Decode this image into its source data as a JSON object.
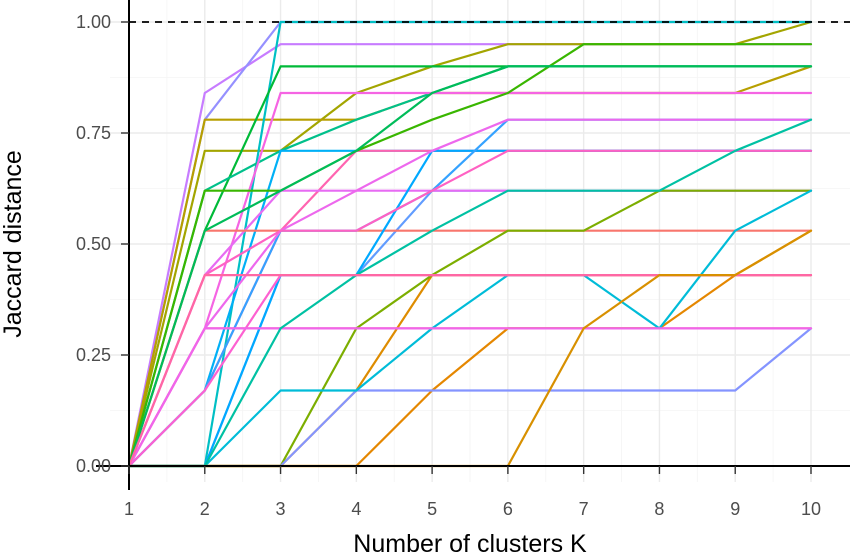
{
  "chart_data": {
    "type": "line",
    "title": "",
    "xlabel": "Number of clusters K",
    "ylabel": "Jaccard distance",
    "xlim": [
      1,
      10
    ],
    "ylim": [
      0,
      1
    ],
    "x_ticks": [
      1,
      2,
      3,
      4,
      5,
      6,
      7,
      8,
      9,
      10
    ],
    "y_ticks": [
      0,
      0.25,
      0.5,
      0.75,
      1
    ],
    "y_tick_labels": [
      "0.00",
      "0.25",
      "0.50",
      "0.75",
      "1.00"
    ],
    "grid": true,
    "legend": "none",
    "reference_line": {
      "y": 1.0,
      "style": "dashed",
      "color": "#000000"
    },
    "x": [
      1,
      2,
      3,
      4,
      5,
      6,
      7,
      8,
      9,
      10
    ],
    "series": [
      {
        "color": "#C77CFF",
        "values": [
          0,
          0.84,
          0.95,
          0.95,
          0.95,
          0.95,
          0.95,
          0.95,
          0.95,
          0.95
        ]
      },
      {
        "color": "#9590FF",
        "values": [
          0,
          0.78,
          1.0,
          1.0,
          1.0,
          1.0,
          1.0,
          1.0,
          1.0,
          1.0
        ]
      },
      {
        "color": "#A3A500",
        "values": [
          0,
          0.71,
          0.71,
          0.84,
          0.9,
          0.95,
          0.95,
          0.95,
          0.95,
          1.0
        ]
      },
      {
        "color": "#B79F00",
        "values": [
          0,
          0.78,
          0.78,
          0.78,
          0.84,
          0.84,
          0.84,
          0.84,
          0.84,
          0.9
        ]
      },
      {
        "color": "#00BFC4",
        "values": [
          0,
          0.0,
          1.0,
          1.0,
          1.0,
          1.0,
          1.0,
          1.0,
          1.0,
          1.0
        ]
      },
      {
        "color": "#00BA38",
        "values": [
          0,
          0.53,
          0.9,
          0.9,
          0.9,
          0.9,
          0.9,
          0.9,
          0.9,
          0.9
        ]
      },
      {
        "color": "#00C08B",
        "values": [
          0,
          0.62,
          0.71,
          0.78,
          0.84,
          0.9,
          0.9,
          0.9,
          0.9,
          0.9
        ]
      },
      {
        "color": "#00B0F6",
        "values": [
          0,
          0.17,
          0.71,
          0.71,
          0.71,
          0.71,
          0.71,
          0.71,
          0.71,
          0.71
        ]
      },
      {
        "color": "#619CFF",
        "values": [
          0,
          0.0,
          0.43,
          0.43,
          0.62,
          0.62,
          0.62,
          0.62,
          0.62,
          0.62
        ]
      },
      {
        "color": "#F564E3",
        "values": [
          0,
          0.31,
          0.84,
          0.84,
          0.84,
          0.84,
          0.84,
          0.84,
          0.84,
          0.84
        ]
      },
      {
        "color": "#FF64B0",
        "values": [
          0,
          0.17,
          0.53,
          0.71,
          0.71,
          0.71,
          0.71,
          0.71,
          0.71,
          0.71
        ]
      },
      {
        "color": "#E76BF3",
        "values": [
          0,
          0.43,
          0.62,
          0.62,
          0.62,
          0.62,
          0.62,
          0.62,
          0.62,
          0.62
        ]
      },
      {
        "color": "#F8766D",
        "values": [
          0,
          0.53,
          0.53,
          0.53,
          0.53,
          0.53,
          0.53,
          0.53,
          0.53,
          0.53
        ]
      },
      {
        "color": "#FF6C91",
        "values": [
          0,
          0.31,
          0.31,
          0.31,
          0.31,
          0.31,
          0.31,
          0.31,
          0.31,
          0.31
        ]
      },
      {
        "color": "#E58700",
        "values": [
          0,
          0.0,
          0.0,
          0.0,
          0.17,
          0.31,
          0.31,
          0.31,
          0.43,
          0.53
        ]
      },
      {
        "color": "#DE8C00",
        "values": [
          0,
          0.0,
          0.0,
          0.17,
          0.43,
          0.43,
          0.43,
          0.43,
          0.43,
          0.43
        ]
      },
      {
        "color": "#7CAE00",
        "values": [
          0,
          0.0,
          0.0,
          0.31,
          0.43,
          0.53,
          0.53,
          0.62,
          0.62,
          0.62
        ]
      },
      {
        "color": "#00A9FF",
        "values": [
          0,
          0.0,
          0.43,
          0.43,
          0.71,
          0.71,
          0.71,
          0.71,
          0.71,
          0.71
        ]
      },
      {
        "color": "#8494FF",
        "values": [
          0,
          0.0,
          0.0,
          0.17,
          0.17,
          0.17,
          0.17,
          0.17,
          0.17,
          0.31
        ]
      },
      {
        "color": "#00BCD8",
        "values": [
          0,
          0.0,
          0.17,
          0.17,
          0.31,
          0.43,
          0.43,
          0.31,
          0.53,
          0.62
        ]
      },
      {
        "color": "#35A2FF",
        "values": [
          0,
          0.17,
          0.53,
          0.53,
          0.62,
          0.78,
          0.78,
          0.78,
          0.78,
          0.78
        ]
      },
      {
        "color": "#39B600",
        "values": [
          0,
          0.62,
          0.62,
          0.71,
          0.78,
          0.84,
          0.95,
          0.95,
          0.95,
          0.95
        ]
      },
      {
        "color": "#ED68ED",
        "values": [
          0,
          0.31,
          0.53,
          0.62,
          0.71,
          0.78,
          0.78,
          0.78,
          0.78,
          0.78
        ]
      },
      {
        "color": "#FF61C3",
        "values": [
          0,
          0.43,
          0.53,
          0.53,
          0.62,
          0.71,
          0.71,
          0.71,
          0.71,
          0.71
        ]
      },
      {
        "color": "#FD61D1",
        "values": [
          0,
          0.17,
          0.43,
          0.43,
          0.43,
          0.43,
          0.43,
          0.43,
          0.43,
          0.43
        ]
      },
      {
        "color": "#F066EA",
        "values": [
          0,
          0.31,
          0.31,
          0.31,
          0.31,
          0.31,
          0.31,
          0.31,
          0.31,
          0.31
        ]
      },
      {
        "color": "#00BC59",
        "values": [
          0,
          0.53,
          0.62,
          0.71,
          0.84,
          0.9,
          0.9,
          0.9,
          0.9,
          0.9
        ]
      },
      {
        "color": "#00C1A3",
        "values": [
          0,
          0.0,
          0.31,
          0.43,
          0.53,
          0.62,
          0.62,
          0.62,
          0.71,
          0.78
        ]
      },
      {
        "color": "#FF67A4",
        "values": [
          0,
          0.43,
          0.43,
          0.43,
          0.43,
          0.43,
          0.43,
          0.43,
          0.43,
          0.43
        ]
      },
      {
        "color": "#D89000",
        "values": [
          0,
          0.0,
          0.0,
          0.0,
          0.0,
          0.0,
          0.31,
          0.43,
          0.43,
          0.53
        ]
      }
    ]
  }
}
